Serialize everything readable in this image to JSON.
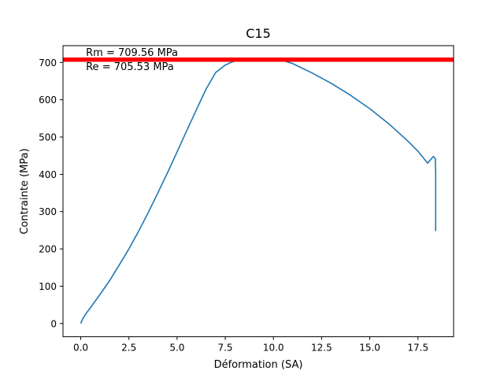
{
  "chart_data": {
    "type": "line",
    "title": "C15",
    "xlabel": "Déformation (SA)",
    "ylabel": "Contrainte (MPa)",
    "xlim": [
      -0.92,
      19.35
    ],
    "ylim": [
      -35.5,
      745.0
    ],
    "x_ticks": [
      0.0,
      2.5,
      5.0,
      7.5,
      10.0,
      12.5,
      15.0,
      17.5
    ],
    "x_tick_labels": [
      "0.0",
      "2.5",
      "5.0",
      "7.5",
      "10.0",
      "12.5",
      "15.0",
      "17.5"
    ],
    "y_ticks": [
      0,
      100,
      200,
      300,
      400,
      500,
      600,
      700
    ],
    "y_tick_labels": [
      "0",
      "100",
      "200",
      "300",
      "400",
      "500",
      "600",
      "700"
    ],
    "grid": false,
    "series": [
      {
        "color": "#1f77b4",
        "x": [
          0.0,
          0.1,
          0.25,
          0.5,
          1.0,
          1.5,
          2.0,
          2.5,
          3.0,
          3.5,
          4.0,
          4.5,
          5.0,
          5.5,
          6.0,
          6.5,
          7.0,
          7.5,
          7.8,
          8.0,
          8.3,
          8.6,
          9.0,
          9.5,
          10.0,
          10.5,
          11.0,
          12.0,
          13.0,
          14.0,
          15.0,
          16.0,
          17.0,
          17.5,
          18.0,
          18.3,
          18.4,
          18.42,
          18.42
        ],
        "y": [
          0,
          12,
          25,
          42,
          78,
          115,
          157,
          200,
          247,
          297,
          350,
          404,
          460,
          517,
          573,
          628,
          673,
          693,
          700,
          704,
          708,
          709,
          709,
          709.5,
          709.56,
          705,
          697,
          672,
          644,
          612,
          576,
          535,
          488,
          462,
          430,
          448,
          442,
          400,
          248
        ]
      }
    ],
    "hlines": [
      {
        "y": 709.56,
        "color": "#ff0000"
      },
      {
        "y": 705.53,
        "color": "#ff0000"
      }
    ],
    "annotations": [
      {
        "text": "Rm = 709.56 MPa",
        "x": 0.27,
        "y": 717.5
      },
      {
        "text": "Re = 705.53 MPa",
        "x": 0.27,
        "y": 680.0
      }
    ]
  }
}
